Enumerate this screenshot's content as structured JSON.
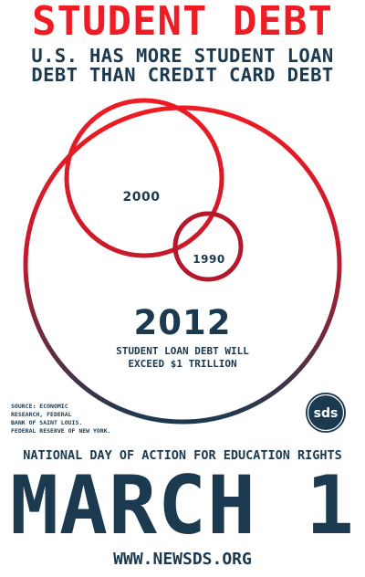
{
  "header": {
    "title": "STUDENT DEBT",
    "subtitle_line1": "U.S. HAS MORE STUDENT LOAN",
    "subtitle_line2": "DEBT THAN CREDIT CARD DEBT"
  },
  "circles": {
    "year_2000": "2000",
    "year_1990": "1990",
    "year_2012": "2012",
    "note_line1": "STUDENT LOAN DEBT WILL",
    "note_line2": "EXCEED $1 TRILLION"
  },
  "source": {
    "line1": "SOURCE: ECONOMIC",
    "line2": "RESEARCH, FEDERAL",
    "line3": "BANK OF SAINT LOUIS.",
    "line4": "FEDERAL RESERVE OF NEW YORK."
  },
  "logo": {
    "text": "sds",
    "icon": "sds-logo-icon"
  },
  "footer": {
    "day_of_action": "NATIONAL DAY OF ACTION FOR EDUCATION RIGHTS",
    "date": "MARCH 1",
    "url": "WWW.NEWSDS.ORG"
  },
  "colors": {
    "red": "#ee1c24",
    "dark_red": "#b5172b",
    "navy": "#1b3a4f",
    "background": "#ffffff"
  }
}
